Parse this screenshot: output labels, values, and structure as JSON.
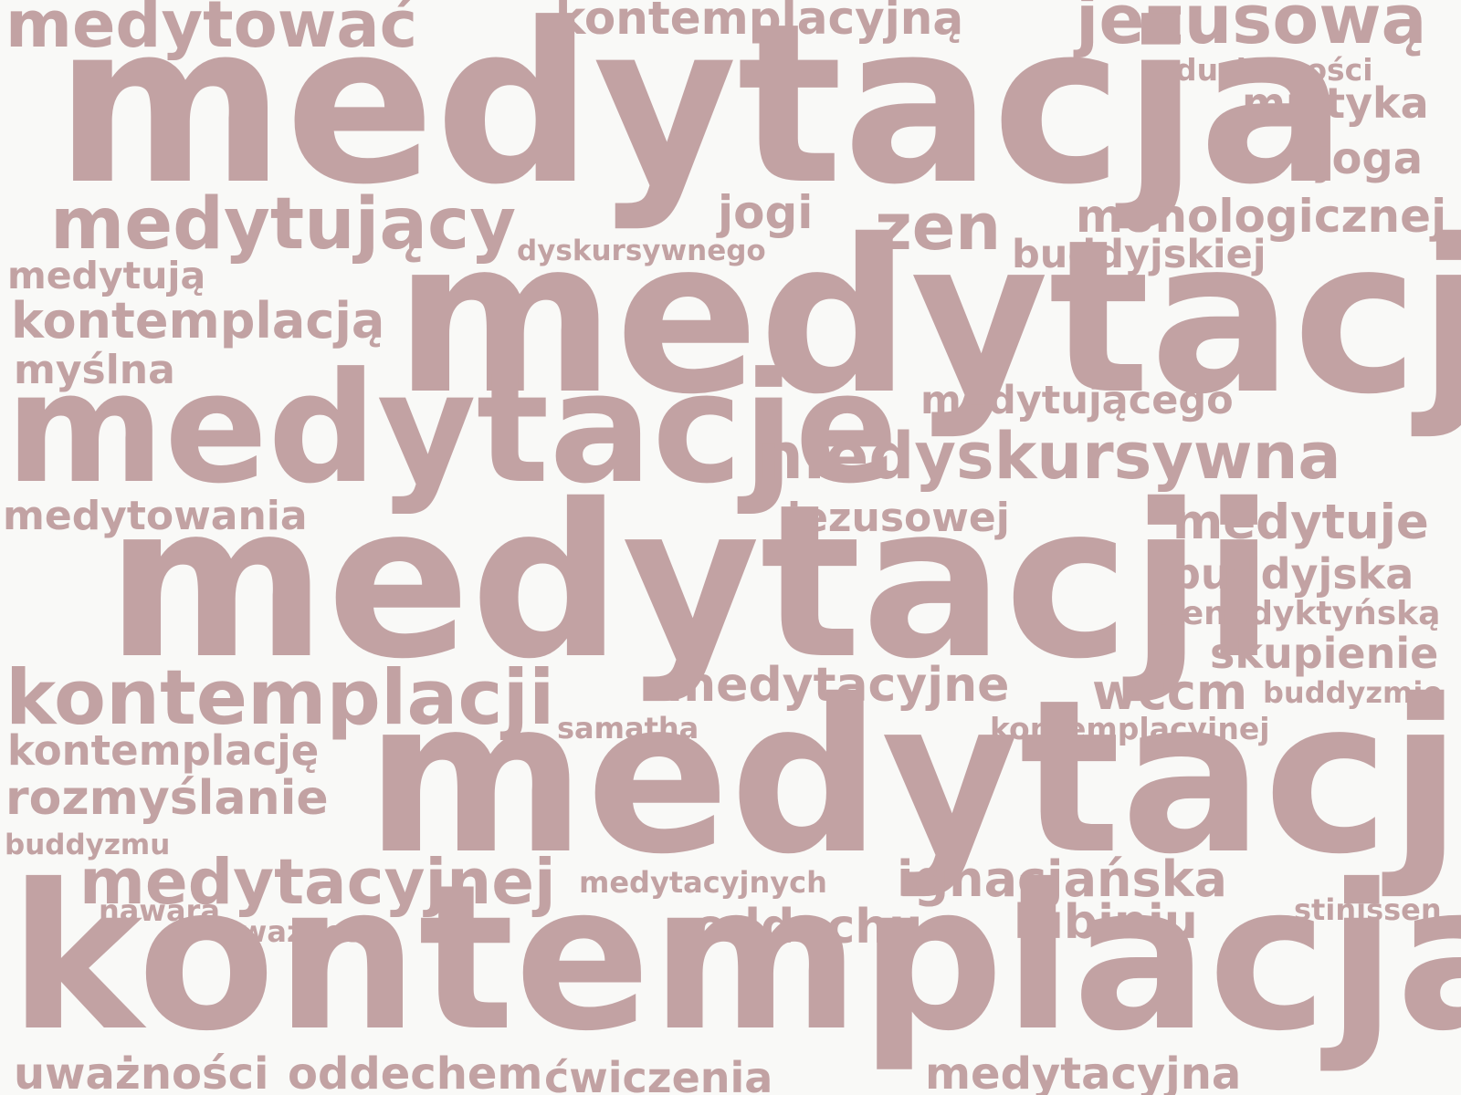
{
  "word_color": "#c2a2a3",
  "background_color": "#f9f9f7",
  "words": {
    "medytowac": "medytować",
    "kontemplacyjna": "kontemplacyjną",
    "jezusowa": "jezusową",
    "duchowosci": "duchowości",
    "mistyka": "mistyka",
    "medytacja": "medytacja",
    "joga": "joga",
    "medytujacy": "medytujący",
    "jogi": "jogi",
    "zen": "zen",
    "monologicznej": "monologicznej",
    "dyskursywnego": "dyskursywnego",
    "buddyjskiej": "buddyjskiej",
    "medytuja": "medytują",
    "kontemplacja_instr": "kontemplacją",
    "medytacja_instr": "medytacją",
    "myslna": "myślna",
    "medytujacego": "medytującego",
    "medytacje": "medytacje",
    "niedyskursywna": "niedyskursywna",
    "medytowania": "medytowania",
    "jezusowej": "jezusowej",
    "medytuje": "medytuje",
    "medytacji": "medytacji",
    "buddyjska": "buddyjska",
    "benedyktynska": "benedyktyńską",
    "skupienie": "skupienie",
    "medytacyjne": "medytacyjne",
    "kontemplacji": "kontemplacji",
    "wccm": "wccm",
    "buddyzmie": "buddyzmie",
    "samatha": "samatha",
    "kontemplacyjnej": "kontemplacyjnej",
    "kontemplacje": "kontemplację",
    "medytacje_acc": "medytację",
    "rozmyslanie": "rozmyślanie",
    "buddyzmu": "buddyzmu",
    "medytacyjnej": "medytacyjnej",
    "medytacyjnych": "medytacyjnych",
    "ignacjanska": "ignacjańska",
    "stinissen": "stinissen",
    "nawara": "nawara",
    "uwaznosc": "uważność",
    "oddechu": "oddechu",
    "lubiniu": "lubiniu",
    "kontemplacja": "kontemplacja",
    "uwaznosci": "uważności",
    "oddechem": "oddechem",
    "cwiczenia": "ćwiczenia",
    "medytacyjna": "medytacyjna"
  }
}
